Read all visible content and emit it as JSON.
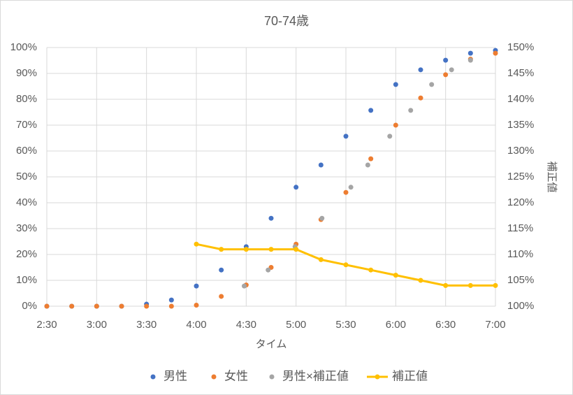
{
  "chart_data": {
    "type": "scatter",
    "title": "70-74歳",
    "x_label": "タイム",
    "y2_label": "補正値",
    "xlim": [
      2.5,
      7
    ],
    "xticks": [
      {
        "value": 2.5,
        "label": "2:30"
      },
      {
        "value": 3,
        "label": "3:00"
      },
      {
        "value": 3.5,
        "label": "3:30"
      },
      {
        "value": 4,
        "label": "4:00"
      },
      {
        "value": 4.5,
        "label": "4:30"
      },
      {
        "value": 5,
        "label": "5:00"
      },
      {
        "value": 5.5,
        "label": "5:30"
      },
      {
        "value": 6,
        "label": "6:00"
      },
      {
        "value": 6.5,
        "label": "6:30"
      },
      {
        "value": 7,
        "label": "7:00"
      }
    ],
    "ylim": [
      0,
      100
    ],
    "yticks": [
      {
        "value": 0,
        "label": "0%"
      },
      {
        "value": 10,
        "label": "10%"
      },
      {
        "value": 20,
        "label": "20%"
      },
      {
        "value": 30,
        "label": "30%"
      },
      {
        "value": 40,
        "label": "40%"
      },
      {
        "value": 50,
        "label": "50%"
      },
      {
        "value": 60,
        "label": "60%"
      },
      {
        "value": 70,
        "label": "70%"
      },
      {
        "value": 80,
        "label": "80%"
      },
      {
        "value": 90,
        "label": "90%"
      },
      {
        "value": 100,
        "label": "100%"
      }
    ],
    "y2lim": [
      100,
      150
    ],
    "y2ticks": [
      {
        "value": 100,
        "label": "100%"
      },
      {
        "value": 105,
        "label": "105%"
      },
      {
        "value": 110,
        "label": "110%"
      },
      {
        "value": 115,
        "label": "115%"
      },
      {
        "value": 120,
        "label": "120%"
      },
      {
        "value": 125,
        "label": "125%"
      },
      {
        "value": 130,
        "label": "130%"
      },
      {
        "value": 135,
        "label": "135%"
      },
      {
        "value": 140,
        "label": "140%"
      },
      {
        "value": 145,
        "label": "145%"
      },
      {
        "value": 150,
        "label": "150%"
      }
    ],
    "grid": true,
    "legend": "bottom",
    "series": [
      {
        "name": "男性",
        "color": "#4472c4",
        "type": "scatter",
        "x": [
          2.5,
          2.75,
          3,
          3.25,
          3.5,
          3.75,
          4,
          4.25,
          4.5,
          4.75,
          5,
          5.25,
          5.5,
          5.75,
          6,
          6.25,
          6.5,
          6.75,
          7
        ],
        "values": [
          0,
          0,
          0,
          0,
          0.8,
          2.4,
          7.8,
          14,
          23,
          34,
          46,
          54.6,
          65.7,
          75.7,
          85.7,
          91.4,
          95.1,
          97.8,
          98.9
        ]
      },
      {
        "name": "女性",
        "color": "#ed7d31",
        "type": "scatter",
        "x": [
          2.5,
          2.75,
          3,
          3.25,
          3.5,
          3.75,
          4,
          4.25,
          4.5,
          4.75,
          5,
          5.25,
          5.5,
          5.75,
          6,
          6.25,
          6.5,
          6.75,
          7
        ],
        "values": [
          0,
          0,
          0,
          0,
          0,
          0,
          0.4,
          3.8,
          8.2,
          15,
          24,
          33.5,
          44,
          57,
          70,
          80.5,
          89.5,
          95.5,
          97.8
        ]
      },
      {
        "name": "男性×補正値",
        "color": "#a5a5a5",
        "type": "scatter",
        "x": [
          4.48,
          4.72,
          4.99,
          5.26,
          5.55,
          5.72,
          5.94,
          6.15,
          6.36,
          6.56,
          6.75
        ],
        "values": [
          7.8,
          14,
          23,
          34,
          46,
          54.6,
          65.7,
          75.7,
          85.7,
          91.4,
          95.1
        ]
      },
      {
        "name": "補正値",
        "color": "#ffc000",
        "type": "line",
        "axis": "y2",
        "x": [
          4,
          4.25,
          4.5,
          4.75,
          5,
          5.25,
          5.5,
          5.75,
          6,
          6.25,
          6.5,
          6.75,
          7
        ],
        "values": [
          112,
          111,
          111,
          111,
          111,
          109,
          108,
          107,
          106,
          105,
          104,
          104,
          104
        ]
      }
    ]
  }
}
